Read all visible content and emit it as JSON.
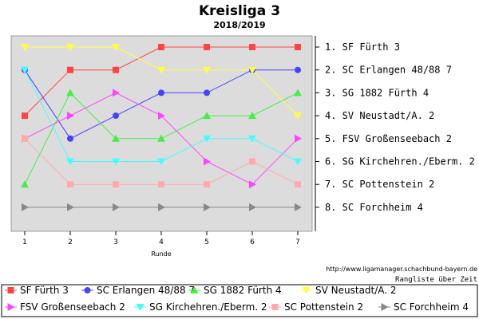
{
  "chart_data": {
    "type": "line",
    "title": "Kreisliga 3",
    "subtitle": "2018/2019",
    "xlabel": "Runde",
    "x": [
      1,
      2,
      3,
      4,
      5,
      6,
      7
    ],
    "ylim": [
      1,
      8
    ],
    "y_inverted": true,
    "grid": false,
    "plot_background": "#dcdcdc",
    "final_ranking": [
      "1. SF Fürth 3",
      "2. SC Erlangen 48/88 7",
      "3. SG 1882 Fürth 4",
      "4. SV Neustadt/A. 2",
      "5. FSV Großenseebach 2",
      "6. SG Kirchehren./Eberm. 2",
      "7. SC Pottenstein 2",
      "8. SC Forchheim 4"
    ],
    "url": "http://www.ligamanager.schachbund-bayern.de",
    "caption": "Rangliste über Zeit",
    "legend_placement": "bottom",
    "series": [
      {
        "name": "SF Fürth 3",
        "color": "#ff4444",
        "marker": "square",
        "values": [
          4,
          2,
          2,
          1,
          1,
          1,
          1
        ]
      },
      {
        "name": "SC Erlangen 48/88 7",
        "color": "#4444ff",
        "marker": "circle",
        "values": [
          2,
          5,
          4,
          3,
          3,
          2,
          2
        ]
      },
      {
        "name": "SG 1882 Fürth 4",
        "color": "#44ee44",
        "marker": "triangle-up",
        "values": [
          7,
          3,
          5,
          5,
          4,
          4,
          3
        ]
      },
      {
        "name": "SV Neustadt/A. 2",
        "color": "#ffff44",
        "marker": "triangle-down",
        "values": [
          1,
          1,
          1,
          2,
          2,
          2,
          4
        ]
      },
      {
        "name": "FSV Großenseebach 2",
        "color": "#ff44ff",
        "marker": "triangle-right",
        "values": [
          5,
          4,
          3,
          4,
          6,
          7,
          5
        ]
      },
      {
        "name": "SG Kirchehren./Eberm. 2",
        "color": "#44ffff",
        "marker": "triangle-down",
        "values": [
          2,
          6,
          6,
          6,
          5,
          5,
          6
        ]
      },
      {
        "name": "SC Pottenstein 2",
        "color": "#ffaaaa",
        "marker": "square",
        "values": [
          5,
          7,
          7,
          7,
          7,
          6,
          7
        ]
      },
      {
        "name": "SC Forchheim 4",
        "color": "#888888",
        "marker": "triangle-right",
        "values": [
          8,
          8,
          8,
          8,
          8,
          8,
          8
        ]
      }
    ]
  }
}
